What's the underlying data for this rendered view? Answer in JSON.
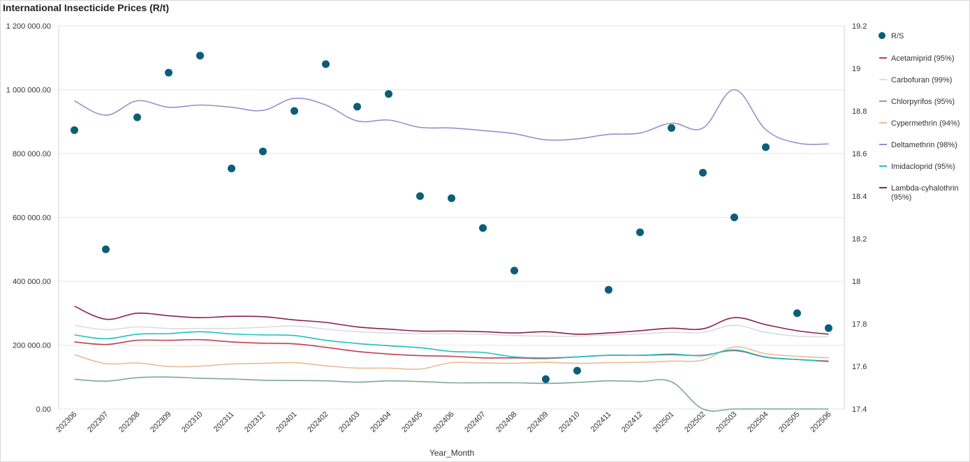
{
  "chart_data": {
    "type": "line",
    "title": "International Insecticide Prices (R/t)",
    "xlabel": "Year_Month",
    "ylabel": "",
    "y2label": "",
    "categories": [
      "202306",
      "202307",
      "202308",
      "202309",
      "202310",
      "202311",
      "202312",
      "202401",
      "202402",
      "202403",
      "202404",
      "202405",
      "202406",
      "202407",
      "202408",
      "202409",
      "202410",
      "202411",
      "202412",
      "202501",
      "202502",
      "202503",
      "202504",
      "202505",
      "202506"
    ],
    "ylim": [
      0,
      1200000
    ],
    "yticks": [
      0,
      200000,
      400000,
      600000,
      800000,
      1000000,
      1200000
    ],
    "ytick_labels": [
      "0.00",
      "200 000.00",
      "400 000.00",
      "600 000.00",
      "800 000.00",
      "1 000 000.00",
      "1 200 000.00"
    ],
    "y2lim": [
      17.4,
      19.2
    ],
    "y2ticks": [
      17.4,
      17.6,
      17.8,
      18,
      18.2,
      18.4,
      18.6,
      18.8,
      19,
      19.2
    ],
    "y2tick_labels": [
      "17.4",
      "17.6",
      "17.8",
      "18",
      "18.2",
      "18.4",
      "18.6",
      "18.8",
      "19",
      "19.2"
    ],
    "grid": true,
    "legend_position": "right",
    "scatter_series": {
      "name": "R/S",
      "color": "#0b5e77",
      "axis": "right",
      "values": [
        18.71,
        18.15,
        18.77,
        18.98,
        19.06,
        18.53,
        18.61,
        18.8,
        19.02,
        18.82,
        18.88,
        18.4,
        18.39,
        18.25,
        18.05,
        17.54,
        17.58,
        17.96,
        18.23,
        18.72,
        18.51,
        18.3,
        18.63,
        17.85,
        17.78
      ]
    },
    "series": [
      {
        "name": "Acetamiprid (95%)",
        "color": "#c0404f",
        "values": [
          210000,
          202000,
          215000,
          215000,
          217000,
          210000,
          206000,
          204000,
          193000,
          180000,
          172000,
          167000,
          165000,
          160000,
          160000,
          158000,
          163000,
          168000,
          168000,
          170000,
          168000,
          183000,
          162000,
          155000,
          150000
        ]
      },
      {
        "name": "Carbofuran (99%)",
        "color": "#dcdcdc",
        "values": [
          262000,
          248000,
          257000,
          252000,
          252000,
          252000,
          256000,
          260000,
          250000,
          242000,
          238000,
          236000,
          236000,
          234000,
          230000,
          228000,
          228000,
          232000,
          235000,
          240000,
          240000,
          262000,
          240000,
          228000,
          226000
        ]
      },
      {
        "name": "Chlorpyrifos (95%)",
        "color": "#7aa79a",
        "values": [
          93000,
          87000,
          98000,
          100000,
          96000,
          94000,
          90000,
          89000,
          88000,
          84000,
          88000,
          86000,
          82000,
          82000,
          82000,
          80000,
          83000,
          88000,
          86000,
          85000,
          0,
          0,
          0,
          0,
          0
        ]
      },
      {
        "name": "Cypermethrin (94%)",
        "color": "#e8bb93",
        "values": [
          170000,
          142000,
          144000,
          133000,
          134000,
          141000,
          143000,
          145000,
          135000,
          128000,
          128000,
          125000,
          145000,
          144000,
          143000,
          146000,
          143000,
          145000,
          146000,
          150000,
          153000,
          194000,
          173000,
          165000,
          160000
        ]
      },
      {
        "name": "Deltamethrin (98%)",
        "color": "#9b8cce",
        "values": [
          965000,
          920000,
          965000,
          945000,
          952000,
          945000,
          935000,
          973000,
          952000,
          902000,
          905000,
          882000,
          880000,
          872000,
          862000,
          843000,
          846000,
          860000,
          864000,
          895000,
          880000,
          1000000,
          875000,
          833000,
          830000
        ]
      },
      {
        "name": "Imidacloprid (95%)",
        "color": "#21c1c1",
        "values": [
          232000,
          220000,
          234000,
          236000,
          242000,
          235000,
          232000,
          230000,
          215000,
          205000,
          198000,
          192000,
          180000,
          177000,
          163000,
          160000,
          163000,
          168000,
          168000,
          172000,
          167000,
          185000,
          163000,
          155000,
          148000
        ]
      },
      {
        "name": "Lambda-cyhalothrin (95%)",
        "color": "#8b1e52",
        "values": [
          322000,
          281000,
          300000,
          292000,
          286000,
          290000,
          289000,
          279000,
          271000,
          257000,
          250000,
          244000,
          244000,
          242000,
          238000,
          242000,
          234000,
          238000,
          245000,
          253000,
          251000,
          286000,
          264000,
          245000,
          234000
        ]
      }
    ]
  }
}
